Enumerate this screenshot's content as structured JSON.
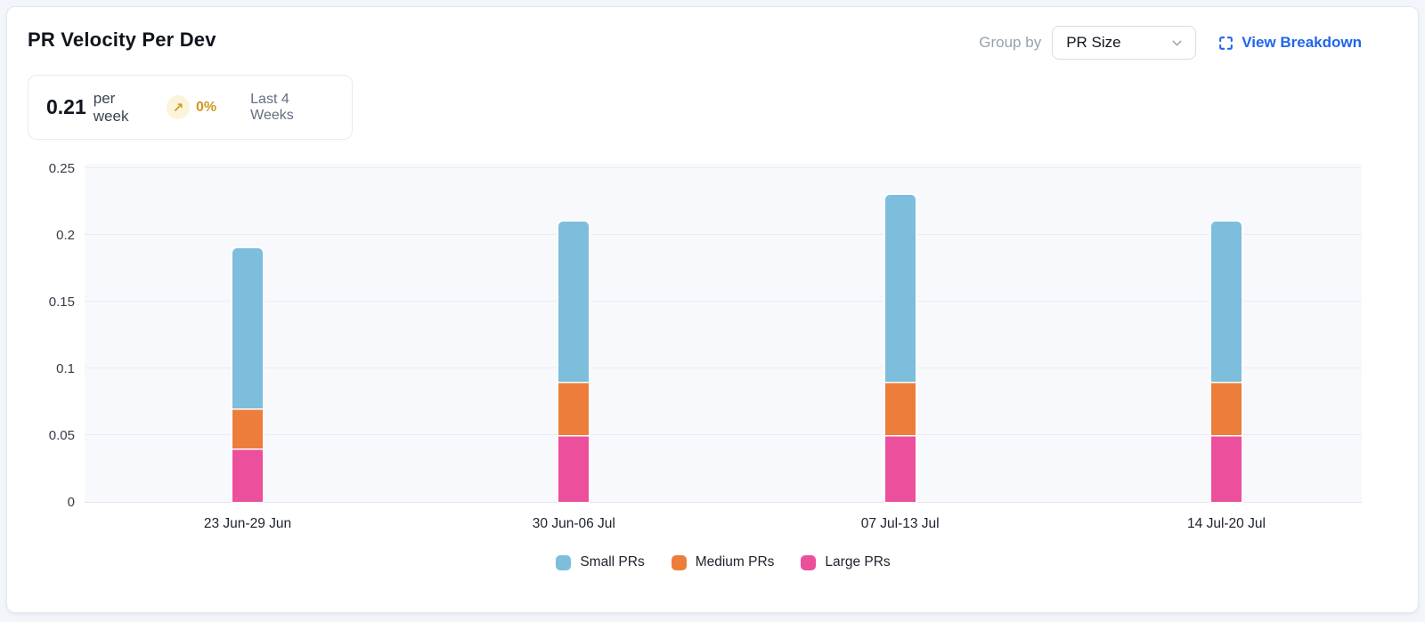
{
  "header": {
    "title": "PR Velocity Per Dev",
    "group_by_label": "Group by",
    "group_by_value": "PR Size",
    "view_breakdown_label": "View Breakdown"
  },
  "stat_card": {
    "value": "0.21",
    "unit_label": "per week",
    "trend_glyph": "↗",
    "trend_percent": "0%",
    "period_label": "Last 4 Weeks"
  },
  "colors": {
    "link_blue": "#2065ec",
    "trend_amber": "#cd9a1c",
    "trend_badge_bg": "#fcf3db",
    "small_prs_blue": "#7cbedb",
    "medium_prs_orange": "#ed7d3b",
    "large_prs_pink": "#ec4f9c",
    "plot_background": "#f8f9fc",
    "grid_color": "#eaedf3"
  },
  "chart_data": {
    "type": "bar",
    "stacked": true,
    "title": "PR Velocity Per Dev",
    "xlabel": "",
    "ylabel": "",
    "categories": [
      "23 Jun-29 Jun",
      "30 Jun-06 Jul",
      "07 Jul-13 Jul",
      "14 Jul-20 Jul"
    ],
    "series": [
      {
        "name": "Small PRs",
        "color": "#7cbedb",
        "values": [
          0.12,
          0.12,
          0.14,
          0.12
        ]
      },
      {
        "name": "Medium PRs",
        "color": "#ed7d3b",
        "values": [
          0.03,
          0.04,
          0.04,
          0.04
        ]
      },
      {
        "name": "Large PRs",
        "color": "#ec4f9c",
        "values": [
          0.04,
          0.05,
          0.05,
          0.05
        ]
      }
    ],
    "stack_order_bottom_to_top": [
      "Large PRs",
      "Medium PRs",
      "Small PRs"
    ],
    "stack_totals": [
      0.19,
      0.21,
      0.23,
      0.21
    ],
    "ylim": [
      0,
      0.25
    ],
    "yticks": [
      0,
      0.05,
      0.1,
      0.15,
      0.2,
      0.25
    ],
    "ytick_labels": [
      "0",
      "0.05",
      "0.1",
      "0.15",
      "0.2",
      "0.25"
    ],
    "grid": true,
    "legend_position": "bottom"
  }
}
